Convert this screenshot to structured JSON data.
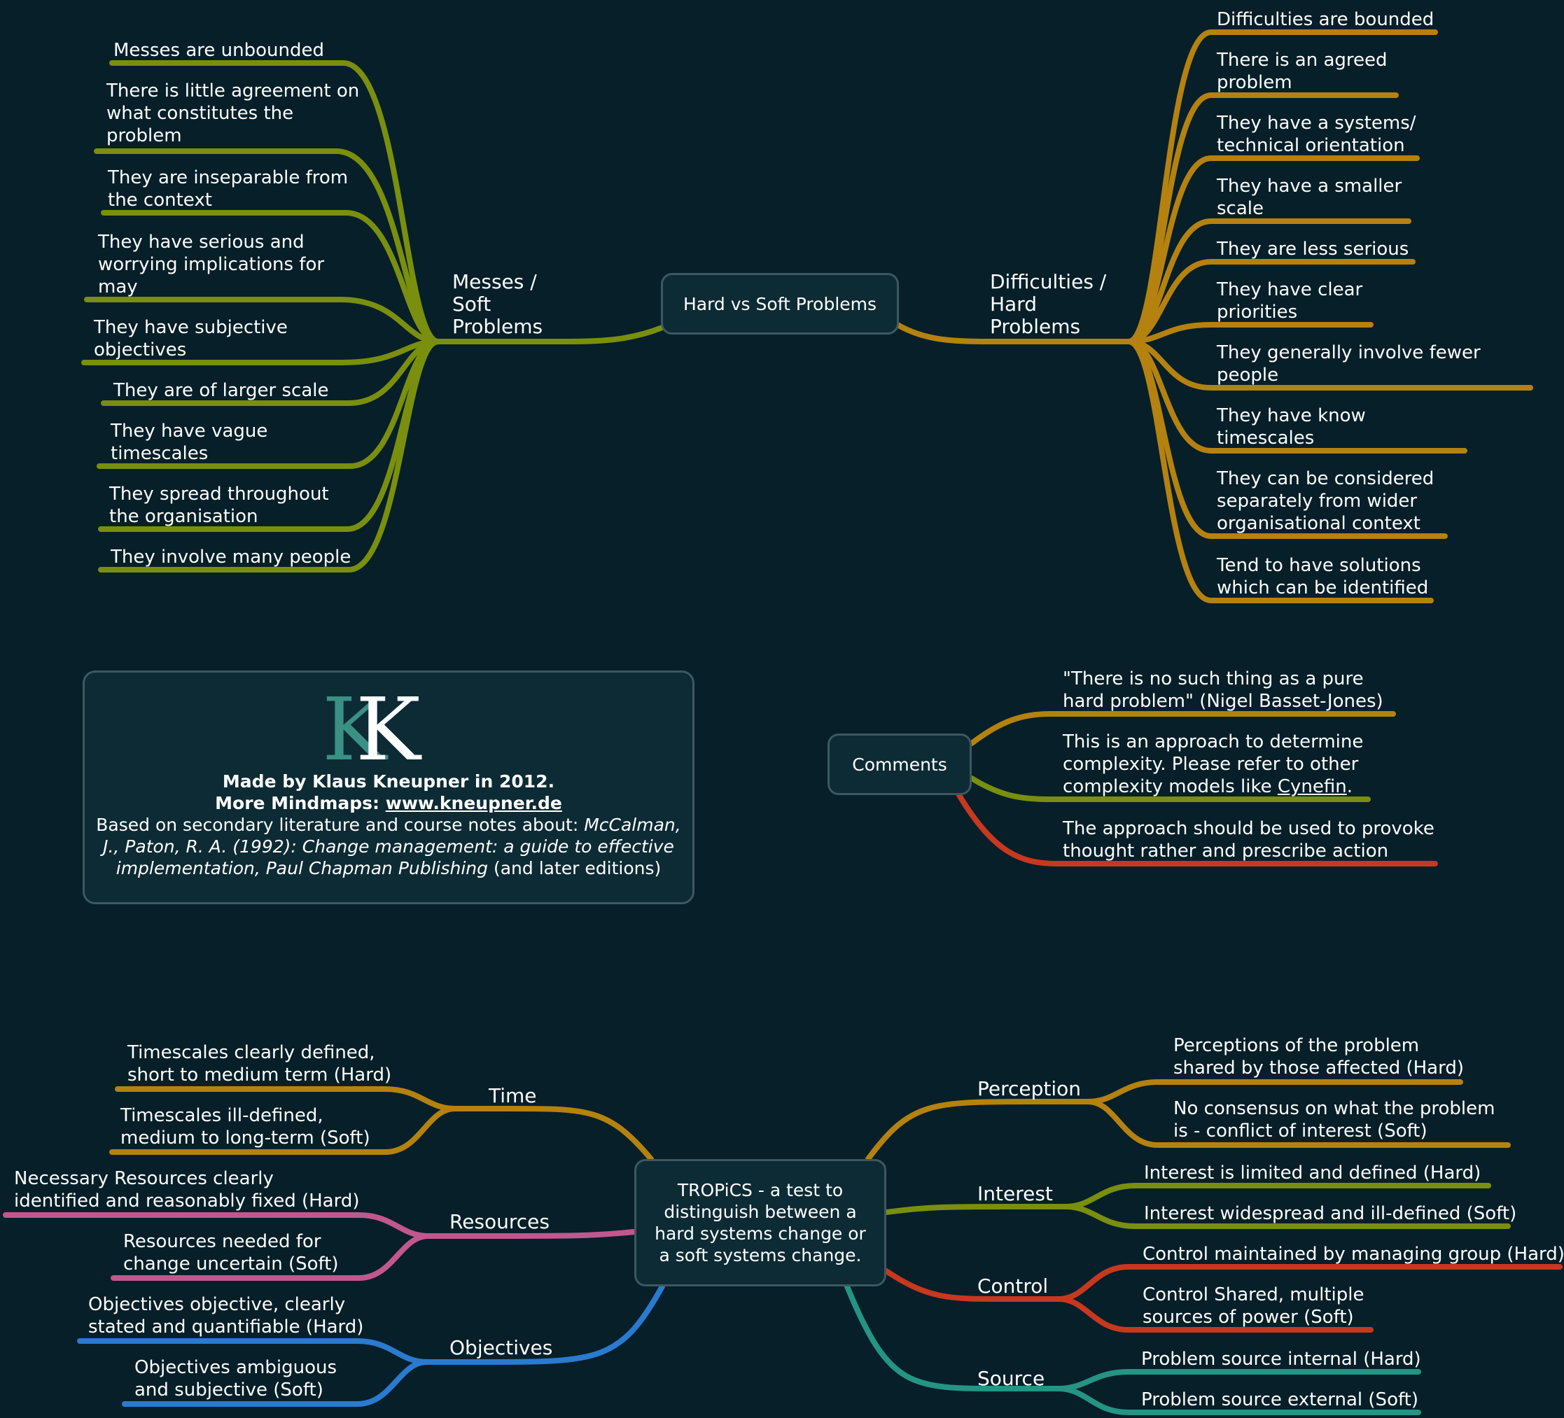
{
  "colors": {
    "background": "#061f29",
    "olive": "#7a8f0d",
    "gold": "#b5810f",
    "red": "#c8381f",
    "pink": "#c2568f",
    "blue": "#2a7ad0",
    "teal": "#249485",
    "node_border": "#3e5860",
    "node_fill": "#0c2b35",
    "logo_teal": "#3a9082"
  },
  "hard_soft": {
    "center": "Hard vs Soft Problems",
    "messes": {
      "label": [
        "Messes /",
        "Soft",
        "Problems"
      ],
      "items": [
        [
          "Messes are unbounded"
        ],
        [
          "There is little agreement on",
          "what constitutes the",
          "problem"
        ],
        [
          "They are inseparable from",
          "the context"
        ],
        [
          "They have serious and",
          "worrying implications for",
          "may"
        ],
        [
          "They have subjective",
          "objectives"
        ],
        [
          "They are of larger scale"
        ],
        [
          "They have vague",
          "timescales"
        ],
        [
          "They spread throughout",
          "the organisation"
        ],
        [
          "They involve many people"
        ]
      ]
    },
    "difficulties": {
      "label": [
        "Difficulties /",
        "Hard",
        "Problems"
      ],
      "items": [
        [
          "Difficulties are bounded"
        ],
        [
          "There is an agreed",
          "problem"
        ],
        [
          "They have a systems/",
          "technical orientation"
        ],
        [
          "They have a smaller",
          "scale"
        ],
        [
          "They are less serious"
        ],
        [
          "They have clear",
          "priorities"
        ],
        [
          "They generally involve fewer",
          "people"
        ],
        [
          "They have know",
          "timescales"
        ],
        [
          "They can be considered",
          "separately from wider",
          "organisational context"
        ],
        [
          "Tend to have solutions",
          "which can be identified"
        ]
      ]
    }
  },
  "info": {
    "logo_letters": "KK",
    "made_by": "Made by Klaus Kneupner in 2012.",
    "more_prefix": "More Mindmaps: ",
    "more_link": "www.kneupner.de",
    "based_prefix": "Based on secondary literature and course notes about: ",
    "ref_1": "McCalman,",
    "ref_2": "J., Paton, R. A. (1992): Change management: a guide to effective",
    "ref_3": "implementation, Paul Chapman Publishing",
    "ref_suffix": " (and later editions)"
  },
  "comments": {
    "center": "Comments",
    "item1": [
      "\"There is no such thing as a pure",
      "hard problem\" (Nigel Basset-Jones)"
    ],
    "item2_l1": "This is an approach to determine",
    "item2_l2": "complexity. Please refer to other",
    "item2_l3_pre": "complexity models like ",
    "item2_link": "Cynefin",
    "item2_l3_post": ".",
    "item3": [
      "The approach should be used to provoke",
      "thought rather and prescribe action"
    ]
  },
  "tropics": {
    "center": "TROPiCS - a test to distinguish between a hard systems change or a soft systems change.",
    "time": {
      "label": "Time",
      "items": [
        [
          "Timescales clearly defined,",
          "short to medium term (Hard)"
        ],
        [
          "Timescales ill-defined,",
          "medium to long-term (Soft)"
        ]
      ]
    },
    "resources": {
      "label": "Resources",
      "items": [
        [
          "Necessary Resources clearly",
          "identified and reasonably fixed (Hard)"
        ],
        [
          "Resources needed for",
          "change uncertain (Soft)"
        ]
      ]
    },
    "objectives": {
      "label": "Objectives",
      "items": [
        [
          "Objectives objective, clearly",
          "stated and quantifiable (Hard)"
        ],
        [
          "Objectives ambiguous",
          "and subjective (Soft)"
        ]
      ]
    },
    "perception": {
      "label": "Perception",
      "items": [
        [
          "Perceptions of the problem",
          "shared by those affected (Hard)"
        ],
        [
          "No consensus on what the problem",
          "is - conflict of interest (Soft)"
        ]
      ]
    },
    "interest": {
      "label": "Interest",
      "items": [
        [
          "Interest is limited and defined (Hard)"
        ],
        [
          "Interest widespread and ill-defined (Soft)"
        ]
      ]
    },
    "control": {
      "label": "Control",
      "items": [
        [
          "Control maintained by managing group (Hard)"
        ],
        [
          "Control Shared, multiple",
          "sources of power (Soft)"
        ]
      ]
    },
    "source": {
      "label": "Source",
      "items": [
        [
          "Problem source internal (Hard)"
        ],
        [
          "Problem source external (Soft)"
        ]
      ]
    }
  }
}
